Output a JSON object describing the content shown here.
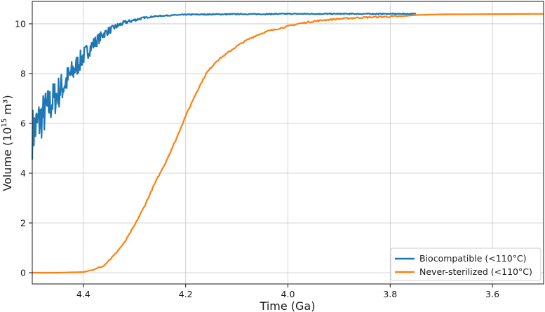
{
  "chart_data": {
    "type": "line",
    "xlabel": "Time (Ga)",
    "ylabel_main": "Volume (10",
    "ylabel_exp": "15",
    "ylabel_tail": " m³)",
    "xlim": [
      4.5,
      3.5
    ],
    "ylim": [
      -0.45,
      10.9
    ],
    "x_ticks": [
      4.4,
      4.2,
      4.0,
      3.8,
      3.6
    ],
    "x_tick_labels": [
      "4.4",
      "4.2",
      "4.0",
      "3.8",
      "3.6"
    ],
    "y_ticks": [
      0,
      2,
      4,
      6,
      8,
      10
    ],
    "y_tick_labels": [
      "0",
      "2",
      "4",
      "6",
      "8",
      "10"
    ],
    "grid": true,
    "legend_position": "lower-right",
    "series": [
      {
        "name": "Biocompatible (<110°C)",
        "color": "#1f77b4",
        "style": "noisy",
        "x": [
          4.5,
          4.48,
          4.46,
          4.44,
          4.42,
          4.4,
          4.38,
          4.36,
          4.34,
          4.32,
          4.3,
          4.28,
          4.26,
          4.24,
          4.22,
          4.2,
          4.15,
          4.1,
          4.05,
          4.0,
          3.95,
          3.9,
          3.85,
          3.8,
          3.75
        ],
        "y": [
          5.6,
          6.3,
          6.9,
          7.5,
          8.1,
          8.7,
          9.2,
          9.6,
          9.85,
          10.05,
          10.15,
          10.25,
          10.3,
          10.33,
          10.35,
          10.37,
          10.38,
          10.39,
          10.39,
          10.4,
          10.4,
          10.4,
          10.4,
          10.4,
          10.4
        ]
      },
      {
        "name": "Never-sterilized (<110°C)",
        "color": "#ff7f0e",
        "style": "smooth",
        "x": [
          4.5,
          4.45,
          4.4,
          4.38,
          4.36,
          4.34,
          4.32,
          4.3,
          4.28,
          4.26,
          4.24,
          4.22,
          4.2,
          4.18,
          4.16,
          4.14,
          4.12,
          4.1,
          4.08,
          4.06,
          4.04,
          4.02,
          4.0,
          3.98,
          3.96,
          3.93,
          3.9,
          3.86,
          3.82,
          3.78,
          3.75,
          3.7,
          3.6,
          3.5
        ],
        "y": [
          0.0,
          0.0,
          0.03,
          0.12,
          0.3,
          0.7,
          1.2,
          1.9,
          2.7,
          3.6,
          4.4,
          5.3,
          6.3,
          7.2,
          8.0,
          8.5,
          8.8,
          9.1,
          9.35,
          9.55,
          9.7,
          9.8,
          9.9,
          10.0,
          10.07,
          10.15,
          10.2,
          10.25,
          10.28,
          10.3,
          10.35,
          10.38,
          10.39,
          10.4
        ]
      }
    ]
  }
}
